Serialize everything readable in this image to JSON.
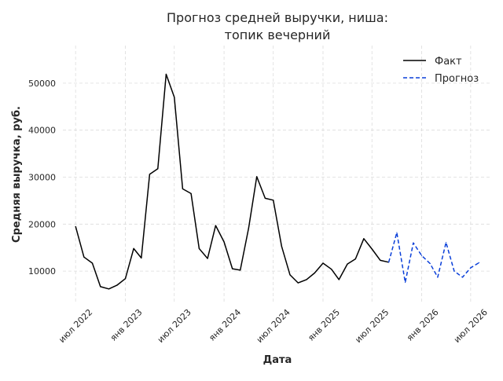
{
  "chart_data": {
    "type": "line",
    "title_line1": "Прогноз средней выручки, ниша:",
    "title_line2": "топик вечерний",
    "xlabel": "Дата",
    "ylabel": "Средняя выручка, руб.",
    "ylim": [
      3500,
      58000
    ],
    "xlim": [
      "2022-05-15",
      "2026-09-15"
    ],
    "grid": true,
    "legend_position": "top-right",
    "y_ticks": [
      10000,
      20000,
      30000,
      40000,
      50000
    ],
    "x_ticks": [
      {
        "date": "2022-07-01",
        "label": "июл 2022"
      },
      {
        "date": "2023-01-01",
        "label": "янв 2023"
      },
      {
        "date": "2023-07-01",
        "label": "июл 2023"
      },
      {
        "date": "2024-01-01",
        "label": "янв 2024"
      },
      {
        "date": "2024-07-01",
        "label": "июл 2024"
      },
      {
        "date": "2025-01-01",
        "label": "янв 2025"
      },
      {
        "date": "2025-07-01",
        "label": "июл 2025"
      },
      {
        "date": "2026-01-01",
        "label": "янв 2026"
      },
      {
        "date": "2026-07-01",
        "label": "июл 2026"
      }
    ],
    "series": [
      {
        "name": "Факт",
        "color": "#000000",
        "style": "solid",
        "points": [
          [
            "2022-07-01",
            19500
          ],
          [
            "2022-08-01",
            13000
          ],
          [
            "2022-09-01",
            11700
          ],
          [
            "2022-10-01",
            6700
          ],
          [
            "2022-11-01",
            6200
          ],
          [
            "2022-12-01",
            7000
          ],
          [
            "2023-01-01",
            8400
          ],
          [
            "2023-02-01",
            14800
          ],
          [
            "2023-03-01",
            12800
          ],
          [
            "2023-04-01",
            30600
          ],
          [
            "2023-05-01",
            31800
          ],
          [
            "2023-06-01",
            51900
          ],
          [
            "2023-07-01",
            47000
          ],
          [
            "2023-08-01",
            27500
          ],
          [
            "2023-09-01",
            26500
          ],
          [
            "2023-10-01",
            14800
          ],
          [
            "2023-11-01",
            12700
          ],
          [
            "2023-12-01",
            19700
          ],
          [
            "2024-01-01",
            16200
          ],
          [
            "2024-02-01",
            10500
          ],
          [
            "2024-03-01",
            10200
          ],
          [
            "2024-04-01",
            19200
          ],
          [
            "2024-05-01",
            30100
          ],
          [
            "2024-06-01",
            25500
          ],
          [
            "2024-07-01",
            25100
          ],
          [
            "2024-08-01",
            15300
          ],
          [
            "2024-09-01",
            9200
          ],
          [
            "2024-10-01",
            7500
          ],
          [
            "2024-11-01",
            8200
          ],
          [
            "2024-12-01",
            9600
          ],
          [
            "2025-01-01",
            11700
          ],
          [
            "2025-02-01",
            10400
          ],
          [
            "2025-03-01",
            8200
          ],
          [
            "2025-04-01",
            11500
          ],
          [
            "2025-05-01",
            12600
          ],
          [
            "2025-06-01",
            16900
          ],
          [
            "2025-07-01",
            14700
          ],
          [
            "2025-08-01",
            12300
          ],
          [
            "2025-09-01",
            11900
          ]
        ]
      },
      {
        "name": "Прогноз",
        "color": "#0a3fd9",
        "style": "dashed",
        "points": [
          [
            "2025-09-01",
            11900
          ],
          [
            "2025-10-01",
            18200
          ],
          [
            "2025-11-01",
            7600
          ],
          [
            "2025-12-01",
            16000
          ],
          [
            "2026-01-01",
            13300
          ],
          [
            "2026-02-01",
            11600
          ],
          [
            "2026-03-01",
            8700
          ],
          [
            "2026-04-01",
            16100
          ],
          [
            "2026-05-01",
            10000
          ],
          [
            "2026-06-01",
            8700
          ],
          [
            "2026-07-01",
            10700
          ],
          [
            "2026-08-01",
            11800
          ]
        ]
      }
    ]
  }
}
